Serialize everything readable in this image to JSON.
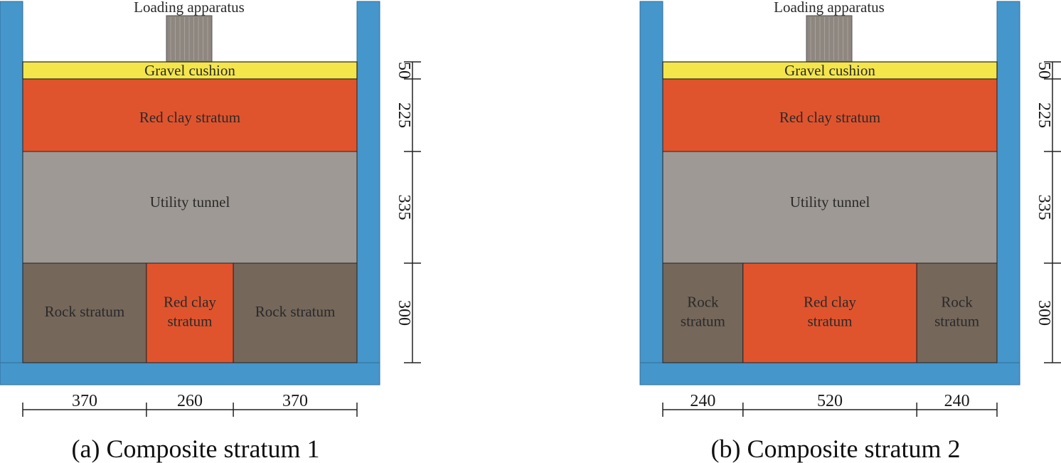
{
  "colors": {
    "wall": "#4596CB",
    "wall_stroke": "#2f6f99",
    "gravel": "#F4E64A",
    "red_clay": "#E0542D",
    "tunnel": "#9E9994",
    "rock": "#75675A",
    "loading": "#8E8780",
    "line": "#222222"
  },
  "panels": [
    {
      "caption": "(a) Composite stratum 1",
      "labels": {
        "loading": "Loading apparatus",
        "gravel": "Gravel cushion",
        "red_clay": "Red clay stratum",
        "tunnel": "Utility tunnel",
        "bottom_left": [
          "Rock stratum"
        ],
        "bottom_mid": [
          "Red clay",
          "stratum"
        ],
        "bottom_right": [
          "Rock stratum"
        ]
      },
      "widths": [
        "370",
        "260",
        "370"
      ],
      "width_values": [
        370,
        260,
        370
      ],
      "heights": [
        "50",
        "225",
        "335",
        "300"
      ]
    },
    {
      "caption": "(b) Composite stratum 2",
      "labels": {
        "loading": "Loading apparatus",
        "gravel": "Gravel cushion",
        "red_clay": "Red clay stratum",
        "tunnel": "Utility tunnel",
        "bottom_left": [
          "Rock",
          "stratum"
        ],
        "bottom_mid": [
          "Red clay",
          "stratum"
        ],
        "bottom_right": [
          "Rock",
          "stratum"
        ]
      },
      "widths": [
        "240",
        "520",
        "240"
      ],
      "width_values": [
        240,
        520,
        240
      ],
      "heights": [
        "50",
        "225",
        "335",
        "300"
      ]
    }
  ]
}
